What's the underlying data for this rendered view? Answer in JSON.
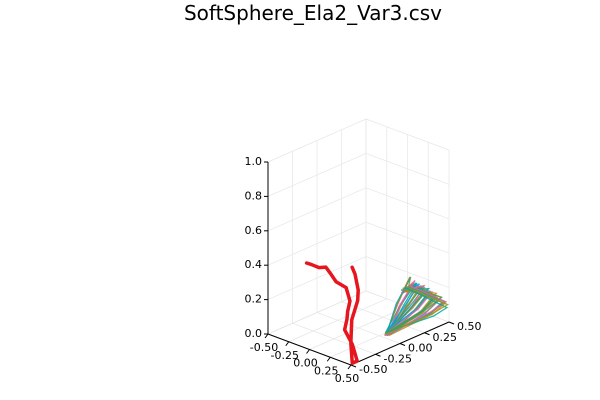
{
  "chart_data": {
    "type": "line3d",
    "title": "SoftSphere_Ela2_Var3.csv",
    "xlabel": "",
    "ylabel": "",
    "zlabel": "",
    "grid": true,
    "legend": "none",
    "xlim": [
      -0.5,
      0.5
    ],
    "ylim": [
      -0.5,
      0.5
    ],
    "zlim": [
      0.0,
      1.0
    ],
    "x_ticks": [
      "-0.50",
      "-0.25",
      "0.00",
      "0.25",
      "0.50"
    ],
    "y_ticks": [
      "-0.50",
      "-0.25",
      "0.00",
      "0.25",
      "0.50"
    ],
    "z_ticks": [
      "0.0",
      "0.2",
      "0.4",
      "0.6",
      "0.8",
      "1.0"
    ],
    "x_tick_values": [
      -0.5,
      -0.25,
      0.0,
      0.25,
      0.5
    ],
    "y_tick_values": [
      -0.5,
      -0.25,
      0.0,
      0.25,
      0.5
    ],
    "z_tick_values": [
      0.0,
      0.2,
      0.4,
      0.6,
      0.8,
      1.0
    ],
    "highlight_series": {
      "color": "#e6161f",
      "points": [
        [
          -0.46,
          -0.14,
          0.33
        ],
        [
          -0.42,
          -0.16,
          0.34
        ],
        [
          -0.35,
          -0.18,
          0.35
        ],
        [
          -0.31,
          -0.14,
          0.33
        ],
        [
          -0.3,
          -0.08,
          0.32
        ],
        [
          -0.28,
          -0.05,
          0.28
        ],
        [
          -0.27,
          0.0,
          0.22
        ],
        [
          -0.22,
          0.06,
          0.18
        ],
        [
          -0.15,
          0.04,
          0.12
        ],
        [
          -0.06,
          -0.06,
          0.1
        ],
        [
          0.05,
          -0.16,
          0.1
        ],
        [
          0.14,
          -0.26,
          0.08
        ],
        [
          0.28,
          -0.3,
          0.03
        ],
        [
          0.48,
          -0.42,
          0.0
        ],
        [
          0.48,
          -0.47,
          0.0
        ],
        [
          0.38,
          -0.4,
          0.08
        ],
        [
          0.32,
          -0.34,
          0.19
        ],
        [
          0.25,
          -0.22,
          0.26
        ],
        [
          0.15,
          -0.13,
          0.28
        ],
        [
          -0.03,
          -0.01,
          0.31
        ],
        [
          -0.1,
          0.02,
          0.33
        ]
      ]
    },
    "bundle_series": {
      "count": 40,
      "colors": [
        "#009af9",
        "#e26f46",
        "#3da44d",
        "#c271d2",
        "#ac8e18",
        "#00a9ad",
        "#ed5e93",
        "#c68225",
        "#00a98d",
        "#8e971d"
      ],
      "base_point": [
        0.33,
        -0.02,
        0.02
      ],
      "top_point": [
        0.02,
        0.48,
        0.1
      ]
    }
  }
}
